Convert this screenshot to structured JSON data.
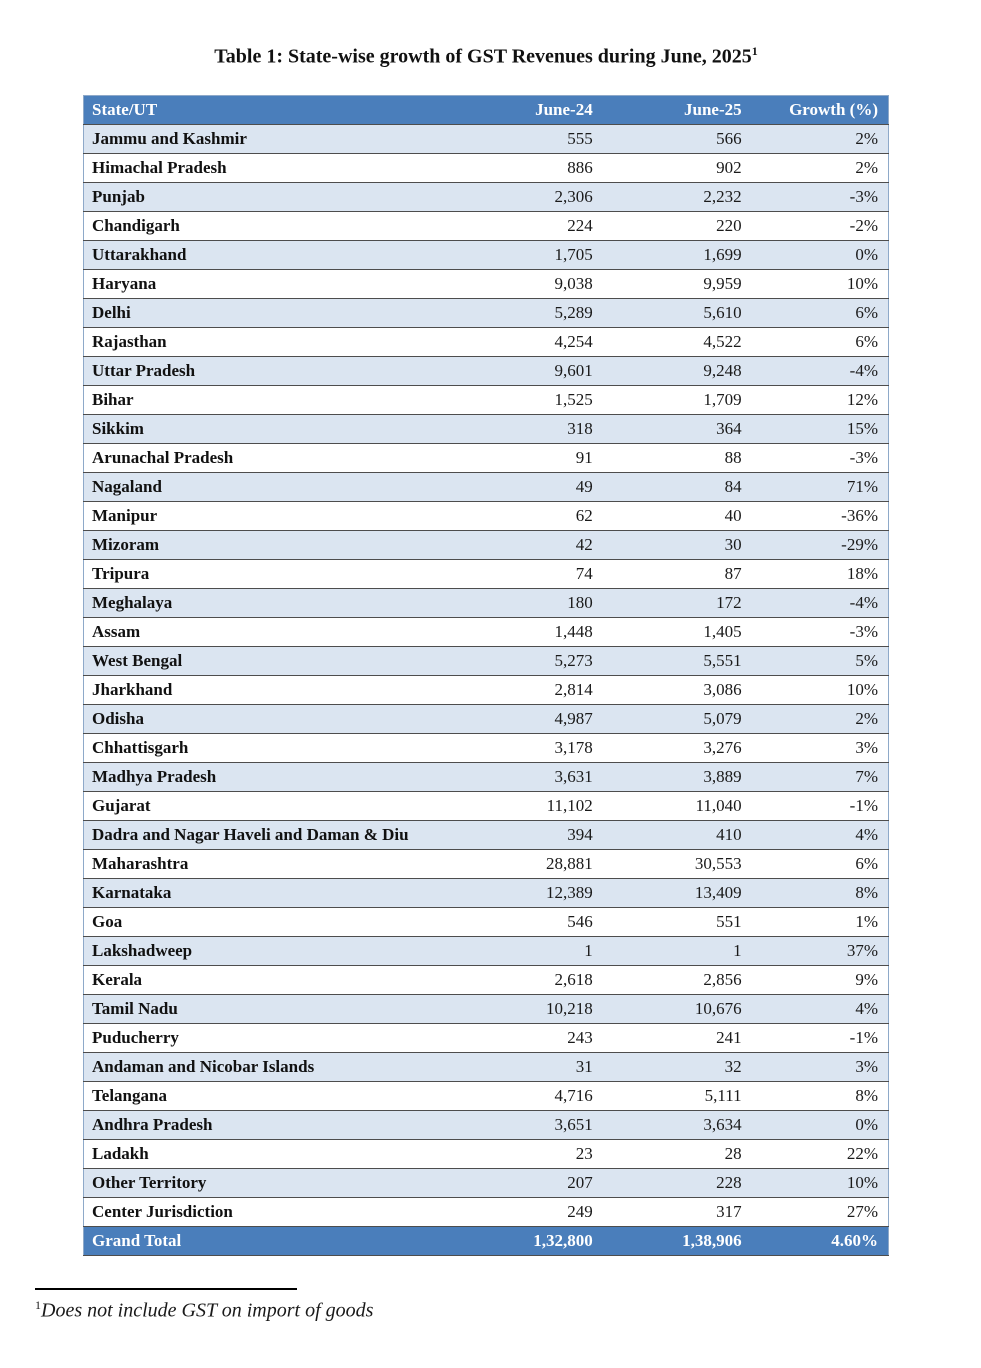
{
  "title": {
    "text": "Table 1: State-wise growth of GST Revenues during June, 2025",
    "superscript": "1"
  },
  "colors": {
    "header_blue": "#4a7ebb",
    "alt_row_blue": "#dbe5f1",
    "row_border": "#4d4d4d",
    "outer_border": "#8ea9c9",
    "header_text": "#ffffff"
  },
  "table": {
    "columns": [
      "State/UT",
      "June-24",
      "June-25",
      "Growth (%)"
    ],
    "rows": [
      {
        "state": "Jammu and Kashmir",
        "june24": "555",
        "june25": "566",
        "growth": "2%"
      },
      {
        "state": "Himachal Pradesh",
        "june24": "886",
        "june25": "902",
        "growth": "2%"
      },
      {
        "state": "Punjab",
        "june24": "2,306",
        "june25": "2,232",
        "growth": "-3%"
      },
      {
        "state": "Chandigarh",
        "june24": "224",
        "june25": "220",
        "growth": "-2%"
      },
      {
        "state": "Uttarakhand",
        "june24": "1,705",
        "june25": "1,699",
        "growth": "0%"
      },
      {
        "state": "Haryana",
        "june24": "9,038",
        "june25": "9,959",
        "growth": "10%"
      },
      {
        "state": "Delhi",
        "june24": "5,289",
        "june25": "5,610",
        "growth": "6%"
      },
      {
        "state": "Rajasthan",
        "june24": "4,254",
        "june25": "4,522",
        "growth": "6%"
      },
      {
        "state": "Uttar Pradesh",
        "june24": "9,601",
        "june25": "9,248",
        "growth": "-4%"
      },
      {
        "state": "Bihar",
        "june24": "1,525",
        "june25": "1,709",
        "growth": "12%"
      },
      {
        "state": "Sikkim",
        "june24": "318",
        "june25": "364",
        "growth": "15%"
      },
      {
        "state": "Arunachal Pradesh",
        "june24": "91",
        "june25": "88",
        "growth": "-3%"
      },
      {
        "state": "Nagaland",
        "june24": "49",
        "june25": "84",
        "growth": "71%"
      },
      {
        "state": "Manipur",
        "june24": "62",
        "june25": "40",
        "growth": "-36%"
      },
      {
        "state": "Mizoram",
        "june24": "42",
        "june25": "30",
        "growth": "-29%"
      },
      {
        "state": "Tripura",
        "june24": "74",
        "june25": "87",
        "growth": "18%"
      },
      {
        "state": "Meghalaya",
        "june24": "180",
        "june25": "172",
        "growth": "-4%"
      },
      {
        "state": "Assam",
        "june24": "1,448",
        "june25": "1,405",
        "growth": "-3%"
      },
      {
        "state": "West Bengal",
        "june24": "5,273",
        "june25": "5,551",
        "growth": "5%"
      },
      {
        "state": "Jharkhand",
        "june24": "2,814",
        "june25": "3,086",
        "growth": "10%"
      },
      {
        "state": "Odisha",
        "june24": "4,987",
        "june25": "5,079",
        "growth": "2%"
      },
      {
        "state": "Chhattisgarh",
        "june24": "3,178",
        "june25": "3,276",
        "growth": "3%"
      },
      {
        "state": "Madhya Pradesh",
        "june24": "3,631",
        "june25": "3,889",
        "growth": "7%"
      },
      {
        "state": "Gujarat",
        "june24": "11,102",
        "june25": "11,040",
        "growth": "-1%"
      },
      {
        "state": "Dadra and Nagar Haveli and Daman & Diu",
        "june24": "394",
        "june25": "410",
        "growth": "4%"
      },
      {
        "state": "Maharashtra",
        "june24": "28,881",
        "june25": "30,553",
        "growth": "6%"
      },
      {
        "state": "Karnataka",
        "june24": "12,389",
        "june25": "13,409",
        "growth": "8%"
      },
      {
        "state": "Goa",
        "june24": "546",
        "june25": "551",
        "growth": "1%"
      },
      {
        "state": "Lakshadweep",
        "june24": "1",
        "june25": "1",
        "growth": "37%"
      },
      {
        "state": "Kerala",
        "june24": "2,618",
        "june25": "2,856",
        "growth": "9%"
      },
      {
        "state": "Tamil Nadu",
        "june24": "10,218",
        "june25": "10,676",
        "growth": "4%"
      },
      {
        "state": "Puducherry",
        "june24": "243",
        "june25": "241",
        "growth": "-1%"
      },
      {
        "state": "Andaman and Nicobar Islands",
        "june24": "31",
        "june25": "32",
        "growth": "3%"
      },
      {
        "state": "Telangana",
        "june24": "4,716",
        "june25": "5,111",
        "growth": "8%"
      },
      {
        "state": "Andhra Pradesh",
        "june24": "3,651",
        "june25": "3,634",
        "growth": "0%"
      },
      {
        "state": "Ladakh",
        "june24": "23",
        "june25": "28",
        "growth": "22%"
      },
      {
        "state": "Other Territory",
        "june24": "207",
        "june25": "228",
        "growth": "10%"
      },
      {
        "state": "Center Jurisdiction",
        "june24": "249",
        "june25": "317",
        "growth": "27%"
      }
    ],
    "grand_total": {
      "state": "Grand Total",
      "june24": "1,32,800",
      "june25": "1,38,906",
      "growth": "4.60%"
    }
  },
  "footnote": {
    "marker": "1",
    "text": "Does not include GST on import of goods"
  }
}
